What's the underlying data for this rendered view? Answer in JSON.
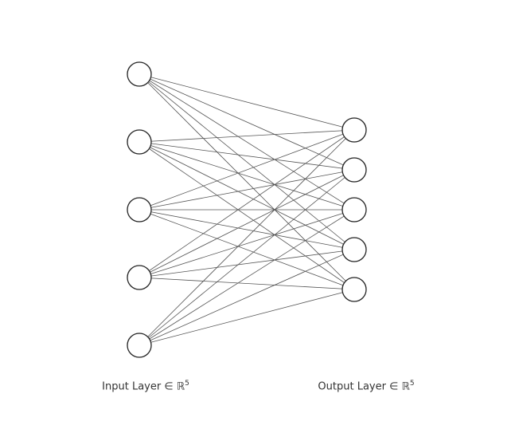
{
  "diagram": {
    "type": "fully-connected-layer",
    "input_layer": {
      "label_prefix": "Input Layer ∈ ℝ",
      "label_exponent": "5",
      "node_count": 5
    },
    "output_layer": {
      "label_prefix": "Output Layer ∈ ℝ",
      "label_exponent": "5",
      "node_count": 5
    },
    "connectivity": "all-to-all",
    "colors": {
      "edge": "#555555",
      "node_stroke": "#222222",
      "node_fill": "#ffffff",
      "label_text": "#333333"
    }
  }
}
